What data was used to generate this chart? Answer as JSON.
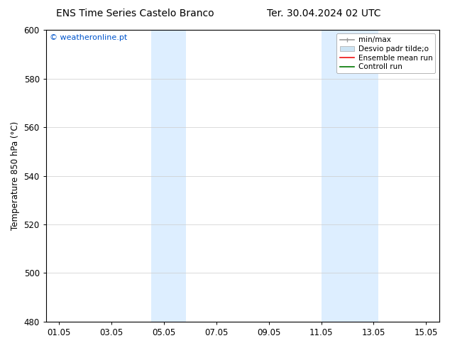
{
  "title_left": "ENS Time Series Castelo Branco",
  "title_right": "Ter. 30.04.2024 02 UTC",
  "ylabel": "Temperature 850 hPa (°C)",
  "bg_color": "#ffffff",
  "plot_bg_color": "#ffffff",
  "shaded_bands": [
    {
      "x_start": 4.5,
      "x_end": 5.83,
      "color": "#ddeeff"
    },
    {
      "x_start": 11.0,
      "x_end": 13.17,
      "color": "#ddeeff"
    }
  ],
  "xlim": [
    0.5,
    15.5
  ],
  "ylim": [
    480,
    600
  ],
  "xticks": [
    1,
    3,
    5,
    7,
    9,
    11,
    13,
    15
  ],
  "xtick_labels": [
    "01.05",
    "03.05",
    "05.05",
    "07.05",
    "09.05",
    "11.05",
    "13.05",
    "15.05"
  ],
  "yticks": [
    480,
    500,
    520,
    540,
    560,
    580,
    600
  ],
  "ytick_labels": [
    "480",
    "500",
    "520",
    "540",
    "560",
    "580",
    "600"
  ],
  "watermark_text": "© weatheronline.pt",
  "watermark_color": "#0055cc",
  "legend_entries": [
    {
      "label": "min/max",
      "color": "#999999",
      "lw": 1.2
    },
    {
      "label": "Desvio padr tilde;o",
      "color": "#cce4f4",
      "lw": 6
    },
    {
      "label": "Ensemble mean run",
      "color": "#ee1111",
      "lw": 1.2
    },
    {
      "label": "Controll run",
      "color": "#007700",
      "lw": 1.2
    }
  ],
  "tick_font_size": 8.5,
  "label_font_size": 8.5,
  "title_font_size": 10,
  "grid_color": "#cccccc",
  "border_color": "#000000",
  "figsize": [
    6.34,
    4.9
  ],
  "dpi": 100
}
